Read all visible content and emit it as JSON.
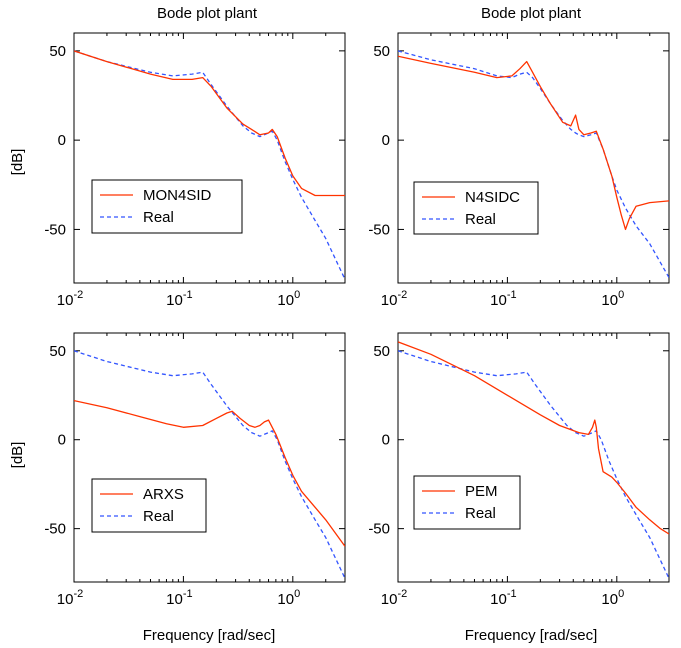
{
  "chart_data": [
    {
      "type": "line",
      "title": "Bode plot plant",
      "xlabel": "",
      "ylabel": "[dB]",
      "xscale": "log",
      "xlim": [
        0.01,
        3
      ],
      "ylim": [
        -80,
        60
      ],
      "xticks": [
        {
          "value": 0.01,
          "base": "10",
          "exp": "-2"
        },
        {
          "value": 0.1,
          "base": "10",
          "exp": "-1"
        },
        {
          "value": 1,
          "base": "10",
          "exp": "0"
        }
      ],
      "yticks": [
        50,
        0,
        -50
      ],
      "legend_position": "center-left",
      "series": [
        {
          "name": "MON4SID",
          "color": "#ff3300",
          "style": "solid",
          "x": [
            0.01,
            0.02,
            0.05,
            0.08,
            0.12,
            0.15,
            0.18,
            0.25,
            0.35,
            0.42,
            0.5,
            0.6,
            0.65,
            0.72,
            0.85,
            1.0,
            1.2,
            1.6,
            2.0,
            3.0
          ],
          "y": [
            50,
            44,
            37,
            34,
            34,
            35,
            30,
            18,
            9,
            6,
            3,
            4,
            6,
            2,
            -10,
            -20,
            -27,
            -31,
            -31,
            -31
          ]
        },
        {
          "name": "Real",
          "color": "#3355ff",
          "style": "dashed",
          "x": [
            0.01,
            0.02,
            0.05,
            0.08,
            0.12,
            0.15,
            0.18,
            0.25,
            0.35,
            0.42,
            0.5,
            0.6,
            0.65,
            0.72,
            0.85,
            1.0,
            1.2,
            1.6,
            2.0,
            3.0
          ],
          "y": [
            50,
            44,
            38,
            36,
            37,
            38,
            31,
            19,
            8,
            4,
            2,
            4,
            5,
            0,
            -12,
            -22,
            -32,
            -45,
            -55,
            -78
          ]
        }
      ]
    },
    {
      "type": "line",
      "title": "Bode plot plant",
      "xlabel": "",
      "ylabel": "",
      "xscale": "log",
      "xlim": [
        0.01,
        3
      ],
      "ylim": [
        -80,
        60
      ],
      "xticks": [
        {
          "value": 0.01,
          "base": "10",
          "exp": "-2"
        },
        {
          "value": 0.1,
          "base": "10",
          "exp": "-1"
        },
        {
          "value": 1,
          "base": "10",
          "exp": "0"
        }
      ],
      "yticks": [
        50,
        0,
        -50
      ],
      "legend_position": "center-left",
      "series": [
        {
          "name": "N4SIDC",
          "color": "#ff3300",
          "style": "solid",
          "x": [
            0.01,
            0.02,
            0.05,
            0.08,
            0.11,
            0.13,
            0.15,
            0.17,
            0.2,
            0.25,
            0.32,
            0.38,
            0.42,
            0.45,
            0.5,
            0.58,
            0.65,
            0.75,
            0.9,
            1.0,
            1.1,
            1.2,
            1.3,
            1.5,
            2.0,
            3.0
          ],
          "y": [
            47,
            43,
            38,
            35,
            36,
            40,
            44,
            38,
            30,
            20,
            10,
            8,
            14,
            6,
            3,
            4,
            5,
            -5,
            -20,
            -32,
            -42,
            -50,
            -44,
            -37,
            -35,
            -34
          ]
        },
        {
          "name": "Real",
          "color": "#3355ff",
          "style": "dashed",
          "x": [
            0.01,
            0.02,
            0.05,
            0.08,
            0.11,
            0.13,
            0.15,
            0.17,
            0.2,
            0.25,
            0.32,
            0.38,
            0.42,
            0.45,
            0.5,
            0.58,
            0.65,
            0.75,
            0.9,
            1.0,
            1.2,
            1.5,
            2.0,
            3.0
          ],
          "y": [
            50,
            45,
            40,
            36,
            35,
            37,
            38,
            35,
            29,
            20,
            11,
            6,
            4,
            3,
            2,
            3,
            4,
            -5,
            -20,
            -28,
            -38,
            -48,
            -58,
            -77
          ]
        }
      ]
    },
    {
      "type": "line",
      "title": "",
      "xlabel": "Frequency [rad/sec]",
      "ylabel": "[dB]",
      "xscale": "log",
      "xlim": [
        0.01,
        3
      ],
      "ylim": [
        -80,
        60
      ],
      "xticks": [
        {
          "value": 0.01,
          "base": "10",
          "exp": "-2"
        },
        {
          "value": 0.1,
          "base": "10",
          "exp": "-1"
        },
        {
          "value": 1,
          "base": "10",
          "exp": "0"
        }
      ],
      "yticks": [
        50,
        0,
        -50
      ],
      "legend_position": "center-left",
      "series": [
        {
          "name": "ARXS",
          "color": "#ff3300",
          "style": "solid",
          "x": [
            0.01,
            0.02,
            0.04,
            0.07,
            0.1,
            0.15,
            0.2,
            0.25,
            0.28,
            0.33,
            0.4,
            0.45,
            0.5,
            0.55,
            0.6,
            0.7,
            0.85,
            1.0,
            1.2,
            1.6,
            2.0,
            3.0
          ],
          "y": [
            22,
            18,
            13,
            9,
            7,
            8,
            12,
            15,
            16,
            12,
            8,
            7,
            8,
            10,
            11,
            3,
            -10,
            -20,
            -29,
            -38,
            -45,
            -60
          ]
        },
        {
          "name": "Real",
          "color": "#3355ff",
          "style": "dashed",
          "x": [
            0.01,
            0.02,
            0.05,
            0.08,
            0.12,
            0.15,
            0.18,
            0.25,
            0.35,
            0.42,
            0.5,
            0.6,
            0.65,
            0.72,
            0.85,
            1.0,
            1.2,
            1.6,
            2.0,
            3.0
          ],
          "y": [
            50,
            44,
            38,
            36,
            37,
            38,
            31,
            19,
            8,
            4,
            2,
            4,
            5,
            0,
            -12,
            -22,
            -32,
            -45,
            -55,
            -78
          ]
        }
      ]
    },
    {
      "type": "line",
      "title": "",
      "xlabel": "Frequency [rad/sec]",
      "ylabel": "",
      "xscale": "log",
      "xlim": [
        0.01,
        3
      ],
      "ylim": [
        -80,
        60
      ],
      "xticks": [
        {
          "value": 0.01,
          "base": "10",
          "exp": "-2"
        },
        {
          "value": 0.1,
          "base": "10",
          "exp": "-1"
        },
        {
          "value": 1,
          "base": "10",
          "exp": "0"
        }
      ],
      "yticks": [
        50,
        0,
        -50
      ],
      "legend_position": "center-left",
      "series": [
        {
          "name": "PEM",
          "color": "#ff3300",
          "style": "solid",
          "x": [
            0.01,
            0.02,
            0.05,
            0.1,
            0.2,
            0.3,
            0.45,
            0.55,
            0.6,
            0.63,
            0.65,
            0.68,
            0.75,
            0.9,
            1.0,
            1.2,
            1.5,
            2.0,
            2.5,
            3.0
          ],
          "y": [
            55,
            48,
            36,
            25,
            14,
            8,
            4,
            3,
            7,
            11,
            7,
            -5,
            -18,
            -21,
            -24,
            -30,
            -38,
            -45,
            -50,
            -53
          ]
        },
        {
          "name": "Real",
          "color": "#3355ff",
          "style": "dashed",
          "x": [
            0.01,
            0.02,
            0.05,
            0.08,
            0.12,
            0.15,
            0.18,
            0.25,
            0.35,
            0.42,
            0.5,
            0.6,
            0.65,
            0.72,
            0.85,
            1.0,
            1.2,
            1.6,
            2.0,
            3.0
          ],
          "y": [
            50,
            44,
            38,
            36,
            37,
            38,
            31,
            19,
            8,
            4,
            2,
            4,
            5,
            0,
            -12,
            -22,
            -32,
            -45,
            -55,
            -78
          ]
        }
      ]
    }
  ]
}
